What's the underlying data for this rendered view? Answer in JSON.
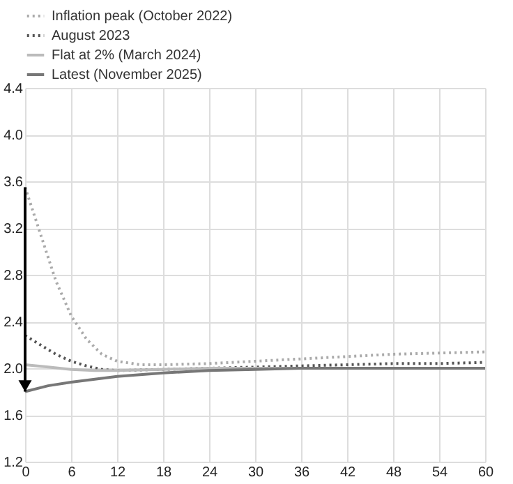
{
  "chart_data": {
    "type": "line",
    "xlim": [
      0,
      60
    ],
    "xticks": [
      0,
      6,
      12,
      18,
      24,
      30,
      36,
      42,
      48,
      54,
      60
    ],
    "ylim": [
      1.2,
      4.4
    ],
    "yticks": [
      1.2,
      1.6,
      {
        "value": 2,
        "label": "2.0"
      },
      2.4,
      2.8,
      3.2,
      3.6,
      {
        "value": 4,
        "label": "4.0"
      },
      4.4
    ],
    "grid": true,
    "legend": "top left",
    "marker": "none",
    "series": [
      {
        "name": "Inflation peak (October 2022)",
        "color": "#aaaaaa",
        "line_style": "dotted",
        "x": [
          0,
          2,
          4,
          6,
          8,
          10,
          12,
          15,
          18,
          24,
          30,
          36,
          42,
          48,
          54,
          60
        ],
        "values": [
          3.55,
          3.15,
          2.75,
          2.45,
          2.25,
          2.12,
          2.06,
          2.03,
          2.03,
          2.04,
          2.06,
          2.08,
          2.1,
          2.12,
          2.13,
          2.14
        ]
      },
      {
        "name": "August 2023",
        "color": "#555555",
        "line_style": "dotted",
        "x": [
          0,
          2,
          4,
          6,
          8,
          10,
          12,
          18,
          24,
          30,
          36,
          42,
          48,
          54,
          60
        ],
        "values": [
          2.28,
          2.2,
          2.12,
          2.06,
          2.02,
          1.99,
          1.98,
          1.99,
          2.0,
          2.01,
          2.02,
          2.03,
          2.04,
          2.04,
          2.05
        ]
      },
      {
        "name": "Flat at 2% (March 2024)",
        "color": "#bbbbbb",
        "line_style": "solid",
        "x": [
          0,
          3,
          6,
          9,
          12,
          18,
          24,
          60
        ],
        "values": [
          2.03,
          2.01,
          1.99,
          1.98,
          1.98,
          1.99,
          2.0,
          2.0
        ]
      },
      {
        "name": "Latest (November 2025)",
        "color": "#777777",
        "line_style": "solid",
        "x": [
          0,
          3,
          6,
          12,
          18,
          24,
          30,
          36,
          60
        ],
        "values": [
          1.8,
          1.85,
          1.88,
          1.93,
          1.96,
          1.98,
          1.99,
          2.0,
          2.0
        ]
      }
    ]
  }
}
